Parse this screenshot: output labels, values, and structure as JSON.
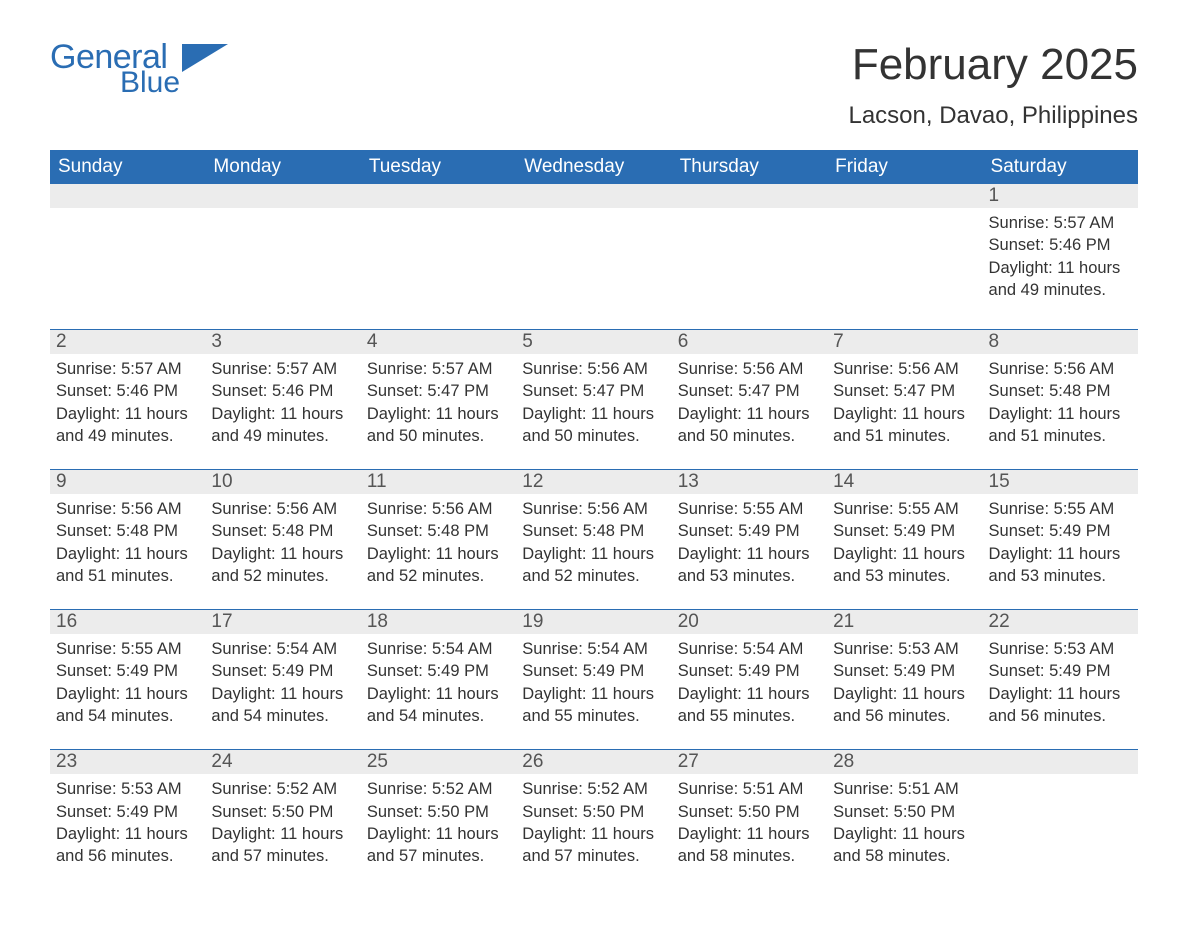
{
  "logo": {
    "general": "General",
    "blue": "Blue"
  },
  "title": "February 2025",
  "location": "Lacson, Davao, Philippines",
  "colors": {
    "brand": "#2a6db3",
    "header_bg": "#2a6db3",
    "header_text": "#ffffff",
    "daynum_bg": "#ececec",
    "text": "#333333",
    "page_bg": "#ffffff"
  },
  "dow": [
    "Sunday",
    "Monday",
    "Tuesday",
    "Wednesday",
    "Thursday",
    "Friday",
    "Saturday"
  ],
  "weeks": [
    [
      null,
      null,
      null,
      null,
      null,
      null,
      {
        "n": "1",
        "sr": "5:57 AM",
        "ss": "5:46 PM",
        "dl": "11 hours and 49 minutes."
      }
    ],
    [
      {
        "n": "2",
        "sr": "5:57 AM",
        "ss": "5:46 PM",
        "dl": "11 hours and 49 minutes."
      },
      {
        "n": "3",
        "sr": "5:57 AM",
        "ss": "5:46 PM",
        "dl": "11 hours and 49 minutes."
      },
      {
        "n": "4",
        "sr": "5:57 AM",
        "ss": "5:47 PM",
        "dl": "11 hours and 50 minutes."
      },
      {
        "n": "5",
        "sr": "5:56 AM",
        "ss": "5:47 PM",
        "dl": "11 hours and 50 minutes."
      },
      {
        "n": "6",
        "sr": "5:56 AM",
        "ss": "5:47 PM",
        "dl": "11 hours and 50 minutes."
      },
      {
        "n": "7",
        "sr": "5:56 AM",
        "ss": "5:47 PM",
        "dl": "11 hours and 51 minutes."
      },
      {
        "n": "8",
        "sr": "5:56 AM",
        "ss": "5:48 PM",
        "dl": "11 hours and 51 minutes."
      }
    ],
    [
      {
        "n": "9",
        "sr": "5:56 AM",
        "ss": "5:48 PM",
        "dl": "11 hours and 51 minutes."
      },
      {
        "n": "10",
        "sr": "5:56 AM",
        "ss": "5:48 PM",
        "dl": "11 hours and 52 minutes."
      },
      {
        "n": "11",
        "sr": "5:56 AM",
        "ss": "5:48 PM",
        "dl": "11 hours and 52 minutes."
      },
      {
        "n": "12",
        "sr": "5:56 AM",
        "ss": "5:48 PM",
        "dl": "11 hours and 52 minutes."
      },
      {
        "n": "13",
        "sr": "5:55 AM",
        "ss": "5:49 PM",
        "dl": "11 hours and 53 minutes."
      },
      {
        "n": "14",
        "sr": "5:55 AM",
        "ss": "5:49 PM",
        "dl": "11 hours and 53 minutes."
      },
      {
        "n": "15",
        "sr": "5:55 AM",
        "ss": "5:49 PM",
        "dl": "11 hours and 53 minutes."
      }
    ],
    [
      {
        "n": "16",
        "sr": "5:55 AM",
        "ss": "5:49 PM",
        "dl": "11 hours and 54 minutes."
      },
      {
        "n": "17",
        "sr": "5:54 AM",
        "ss": "5:49 PM",
        "dl": "11 hours and 54 minutes."
      },
      {
        "n": "18",
        "sr": "5:54 AM",
        "ss": "5:49 PM",
        "dl": "11 hours and 54 minutes."
      },
      {
        "n": "19",
        "sr": "5:54 AM",
        "ss": "5:49 PM",
        "dl": "11 hours and 55 minutes."
      },
      {
        "n": "20",
        "sr": "5:54 AM",
        "ss": "5:49 PM",
        "dl": "11 hours and 55 minutes."
      },
      {
        "n": "21",
        "sr": "5:53 AM",
        "ss": "5:49 PM",
        "dl": "11 hours and 56 minutes."
      },
      {
        "n": "22",
        "sr": "5:53 AM",
        "ss": "5:49 PM",
        "dl": "11 hours and 56 minutes."
      }
    ],
    [
      {
        "n": "23",
        "sr": "5:53 AM",
        "ss": "5:49 PM",
        "dl": "11 hours and 56 minutes."
      },
      {
        "n": "24",
        "sr": "5:52 AM",
        "ss": "5:50 PM",
        "dl": "11 hours and 57 minutes."
      },
      {
        "n": "25",
        "sr": "5:52 AM",
        "ss": "5:50 PM",
        "dl": "11 hours and 57 minutes."
      },
      {
        "n": "26",
        "sr": "5:52 AM",
        "ss": "5:50 PM",
        "dl": "11 hours and 57 minutes."
      },
      {
        "n": "27",
        "sr": "5:51 AM",
        "ss": "5:50 PM",
        "dl": "11 hours and 58 minutes."
      },
      {
        "n": "28",
        "sr": "5:51 AM",
        "ss": "5:50 PM",
        "dl": "11 hours and 58 minutes."
      },
      null
    ]
  ],
  "labels": {
    "sunrise": "Sunrise:",
    "sunset": "Sunset:",
    "daylight": "Daylight:"
  }
}
